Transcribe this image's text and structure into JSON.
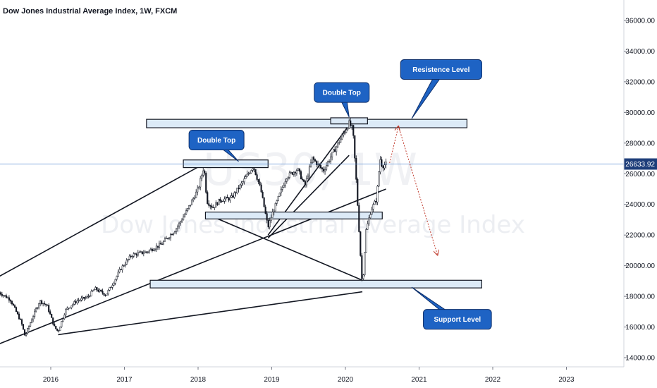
{
  "title": "Dow Jones Industrial Average Index, 1W, FXCM",
  "watermark": {
    "symbol": "US30, 1W",
    "name": "Dow Jones Industrial Average Index"
  },
  "colors": {
    "up": "#131722",
    "down": "#131722",
    "zone_fill": "#dceaf7",
    "zone_stroke": "#131722",
    "callout": "#1e63c4",
    "projection": "#c0392b",
    "price_line": "#5b8fd6",
    "price_badge": "#1e3e7a"
  },
  "chart_data": {
    "type": "candlestick",
    "timeframe": "1W",
    "x_axis": {
      "ticks": [
        "2016",
        "2017",
        "2018",
        "2019",
        "2020",
        "2021",
        "2022",
        "2023"
      ]
    },
    "y_axis": {
      "range": [
        13500,
        37200
      ],
      "ticks": [
        "14000.00",
        "16000.00",
        "18000.00",
        "20000.00",
        "22000.00",
        "24000.00",
        "26000.00",
        "28000.00",
        "30000.00",
        "32000.00",
        "34000.00",
        "36000.00"
      ]
    },
    "last_price": "26633.92",
    "price_path": [
      [
        "2015.30",
        18250
      ],
      [
        "2015.45",
        17800
      ],
      [
        "2015.60",
        16300
      ],
      [
        "2015.65",
        15400
      ],
      [
        "2015.75",
        16600
      ],
      [
        "2015.85",
        17700
      ],
      [
        "2015.95",
        17400
      ],
      [
        "2016.05",
        16000
      ],
      [
        "2016.10",
        15700
      ],
      [
        "2016.20",
        17100
      ],
      [
        "2016.35",
        17700
      ],
      [
        "2016.50",
        17950
      ],
      [
        "2016.60",
        18500
      ],
      [
        "2016.75",
        18100
      ],
      [
        "2016.85",
        18900
      ],
      [
        "2016.95",
        19800
      ],
      [
        "2017.10",
        20700
      ],
      [
        "2017.30",
        20900
      ],
      [
        "2017.50",
        21400
      ],
      [
        "2017.70",
        22400
      ],
      [
        "2017.85",
        23600
      ],
      [
        "2018.00",
        25000
      ],
      [
        "2018.08",
        26500
      ],
      [
        "2018.12",
        24200
      ],
      [
        "2018.20",
        23800
      ],
      [
        "2018.30",
        24300
      ],
      [
        "2018.45",
        24400
      ],
      [
        "2018.60",
        25400
      ],
      [
        "2018.75",
        26500
      ],
      [
        "2018.85",
        25000
      ],
      [
        "2018.95",
        22500
      ],
      [
        "2019.00",
        23300
      ],
      [
        "2019.20",
        25800
      ],
      [
        "2019.35",
        26300
      ],
      [
        "2019.45",
        25200
      ],
      [
        "2019.55",
        27000
      ],
      [
        "2019.70",
        26200
      ],
      [
        "2019.80",
        27100
      ],
      [
        "2019.95",
        28400
      ],
      [
        "2020.05",
        29300
      ],
      [
        "2020.10",
        28900
      ],
      [
        "2020.15",
        25300
      ],
      [
        "2020.20",
        21000
      ],
      [
        "2020.23",
        18600
      ],
      [
        "2020.28",
        22300
      ],
      [
        "2020.35",
        23700
      ],
      [
        "2020.42",
        24300
      ],
      [
        "2020.47",
        27000
      ],
      [
        "2020.50",
        26500
      ],
      [
        "2020.55",
        26634
      ]
    ],
    "zones": [
      {
        "from": "2017.30",
        "to": "2021.65",
        "low": 29000,
        "high": 29550
      },
      {
        "from": "2017.80",
        "to": "2018.95",
        "low": 26400,
        "high": 26900
      },
      {
        "from": "2019.80",
        "to": "2020.30",
        "low": 29250,
        "high": 29650
      },
      {
        "from": "2018.10",
        "to": "2020.50",
        "low": 23050,
        "high": 23500
      },
      {
        "from": "2017.35",
        "to": "2021.85",
        "low": 18550,
        "high": 19050
      }
    ],
    "trendlines": [
      [
        [
          "2015.30",
          19300
        ],
        [
          "2018.10",
          26700
        ]
      ],
      [
        [
          "2015.30",
          14900
        ],
        [
          "2020.55",
          25000
        ]
      ],
      [
        [
          "2016.10",
          15500
        ],
        [
          "2020.23",
          18300
        ]
      ],
      [
        [
          "2018.10",
          23400
        ],
        [
          "2020.23",
          19050
        ]
      ],
      [
        [
          "2018.95",
          22000
        ],
        [
          "2020.10",
          29500
        ]
      ],
      [
        [
          "2018.95",
          21800
        ],
        [
          "2020.05",
          27200
        ]
      ]
    ],
    "projection": [
      [
        "2020.60",
        26700
      ],
      [
        "2020.72",
        29100
      ],
      [
        "2021.25",
        20700
      ]
    ],
    "callouts": [
      {
        "text": "Double Top",
        "x": "2018.25",
        "y": 28200,
        "target": [
          "2018.55",
          26800
        ]
      },
      {
        "text": "Double Top",
        "x": "2019.95",
        "y": 31300,
        "target": [
          "2020.05",
          29700
        ]
      },
      {
        "text": "Resistence Level",
        "x": "2021.30",
        "y": 32800,
        "target": [
          "2020.90",
          29600
        ]
      },
      {
        "text": "Support Level",
        "x": "2021.52",
        "y": 16500,
        "target": [
          "2020.90",
          18600
        ]
      }
    ]
  }
}
